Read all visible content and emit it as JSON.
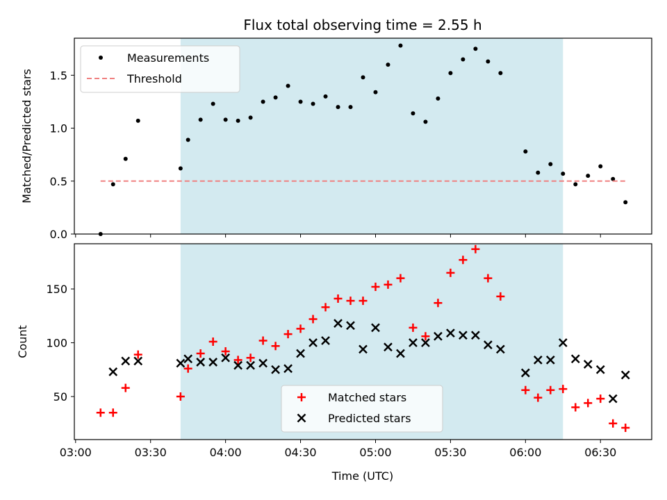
{
  "chart_data": {
    "type": "scatter",
    "title": "Flux total observing time = 2.55 h",
    "xlabel": "Time (UTC)",
    "x_tick_labels": [
      "03:00",
      "03:30",
      "04:00",
      "04:30",
      "05:00",
      "05:30",
      "06:00",
      "06:30"
    ],
    "x_tick_values_min": [
      0,
      30,
      60,
      90,
      120,
      150,
      180,
      210
    ],
    "xlim_min": [
      -0.5,
      230.5
    ],
    "shaded_region_min": [
      42,
      195
    ],
    "shaded_color": "#d3eaf0",
    "panels": [
      {
        "ylabel": "Matched/Predicted stars",
        "ylim": [
          0,
          1.85
        ],
        "y_ticks": [
          "0.0",
          "0.5",
          "1.0",
          "1.5"
        ],
        "y_tick_values": [
          0,
          0.5,
          1.0,
          1.5
        ],
        "legend_position": "upper-left",
        "series": [
          {
            "name": "Measurements",
            "marker": "dot",
            "color": "#000000",
            "x_min": [
              10,
              15,
              20,
              25,
              42,
              45,
              50,
              55,
              60,
              65,
              70,
              75,
              80,
              85,
              90,
              95,
              100,
              105,
              110,
              115,
              120,
              125,
              130,
              135,
              140,
              145,
              150,
              155,
              160,
              165,
              170,
              180,
              185,
              190,
              195,
              200,
              205,
              210,
              215,
              220
            ],
            "y": [
              0.0,
              0.47,
              0.71,
              1.07,
              0.62,
              0.89,
              1.08,
              1.23,
              1.08,
              1.07,
              1.1,
              1.25,
              1.29,
              1.4,
              1.25,
              1.23,
              1.3,
              1.2,
              1.2,
              1.48,
              1.34,
              1.6,
              1.78,
              1.14,
              1.06,
              1.28,
              1.52,
              1.65,
              1.75,
              1.63,
              1.52,
              0.78,
              0.58,
              0.66,
              0.57,
              0.47,
              0.55,
              0.64,
              0.52,
              0.3
            ]
          },
          {
            "name": "Threshold",
            "marker": "dashed-line",
            "color": "#f08080",
            "x_min": [
              10,
              220
            ],
            "y": [
              0.5,
              0.5
            ]
          }
        ]
      },
      {
        "ylabel": "Count",
        "ylim": [
          10,
          192
        ],
        "y_ticks": [
          "50",
          "100",
          "150"
        ],
        "y_tick_values": [
          50,
          100,
          150
        ],
        "legend_position": "lower-center",
        "series": [
          {
            "name": "Matched stars",
            "marker": "plus",
            "color": "#ff0000",
            "x_min": [
              10,
              15,
              20,
              25,
              42,
              45,
              50,
              55,
              60,
              65,
              70,
              75,
              80,
              85,
              90,
              95,
              100,
              105,
              110,
              115,
              120,
              125,
              130,
              135,
              140,
              145,
              150,
              155,
              160,
              165,
              170,
              180,
              185,
              190,
              195,
              200,
              205,
              210,
              215,
              220
            ],
            "y": [
              35,
              35,
              58,
              89,
              50,
              76,
              90,
              101,
              92,
              84,
              86,
              102,
              97,
              108,
              113,
              122,
              133,
              141,
              139,
              139,
              152,
              154,
              160,
              114,
              106,
              137,
              165,
              177,
              187,
              160,
              143,
              56,
              49,
              56,
              57,
              40,
              44,
              48,
              25,
              21
            ]
          },
          {
            "name": "Predicted stars",
            "marker": "x",
            "color": "#000000",
            "x_min": [
              15,
              20,
              25,
              42,
              45,
              50,
              55,
              60,
              65,
              70,
              75,
              80,
              85,
              90,
              95,
              100,
              105,
              110,
              115,
              120,
              125,
              130,
              135,
              140,
              145,
              150,
              155,
              160,
              165,
              170,
              180,
              185,
              190,
              195,
              200,
              205,
              210,
              215,
              220
            ],
            "y": [
              73,
              83,
              83,
              81,
              85,
              82,
              82,
              86,
              79,
              79,
              81,
              75,
              76,
              90,
              100,
              102,
              118,
              116,
              94,
              114,
              96,
              90,
              100,
              100,
              106,
              109,
              107,
              107,
              98,
              94,
              72,
              84,
              84,
              100,
              85,
              80,
              75,
              48,
              70
            ]
          }
        ]
      }
    ]
  }
}
